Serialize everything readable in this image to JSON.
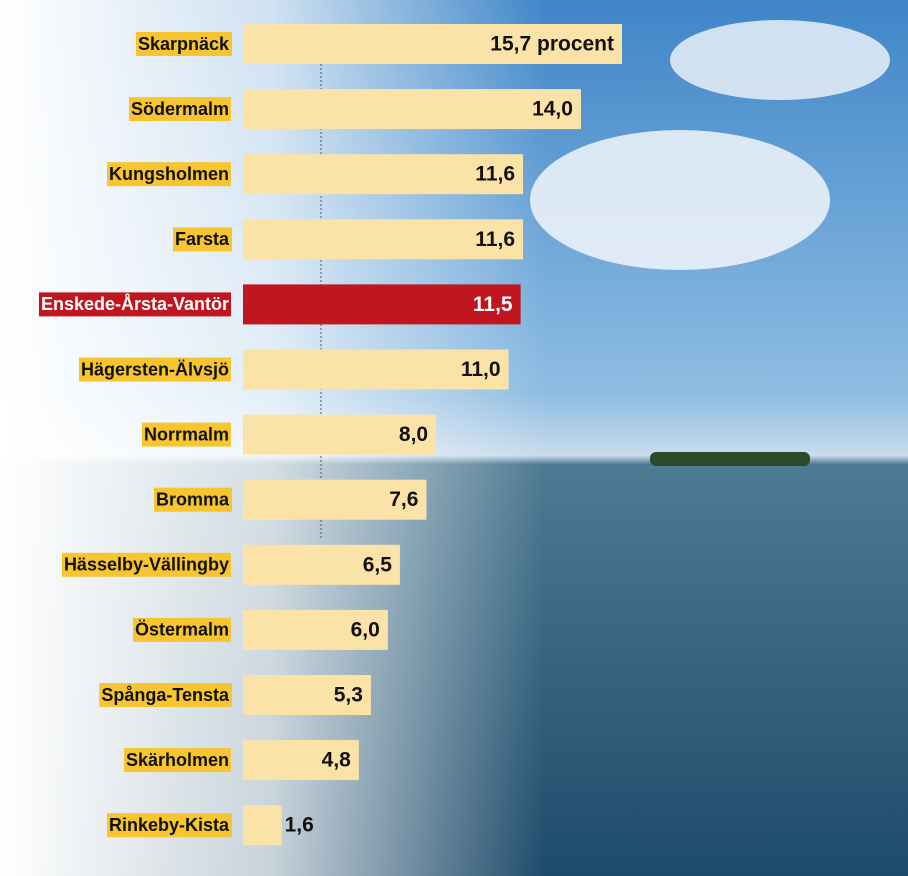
{
  "chart_data": {
    "type": "bar",
    "orientation": "horizontal",
    "categories": [
      "Skarpnäck",
      "Södermalm",
      "Kungsholmen",
      "Farsta",
      "Enskede-Årsta-Vantör",
      "Hägersten-Älvsjö",
      "Norrmalm",
      "Bromma",
      "Hässelby-Vällingby",
      "Östermalm",
      "Spånga-Tensta",
      "Skärholmen",
      "Rinkeby-Kista"
    ],
    "values": [
      15.7,
      14.0,
      11.6,
      11.6,
      11.5,
      11.0,
      8.0,
      7.6,
      6.5,
      6.0,
      5.3,
      4.8,
      1.6
    ],
    "value_labels": [
      "15,7 procent",
      "14,0",
      "11,6",
      "11,6",
      "11,5",
      "11,0",
      "8,0",
      "7,6",
      "6,5",
      "6,0",
      "5,3",
      "4,8",
      "1,6"
    ],
    "color": "#fbe3a8",
    "label_color": "#f6c52f",
    "colors": [
      "#fbe3a8",
      "#fbe3a8",
      "#fbe3a8",
      "#fbe3a8",
      "#c0161f",
      "#fbe3a8",
      "#fbe3a8",
      "#fbe3a8",
      "#fbe3a8",
      "#fbe3a8",
      "#fbe3a8",
      "#fbe3a8",
      "#fbe3a8"
    ]
  }
}
